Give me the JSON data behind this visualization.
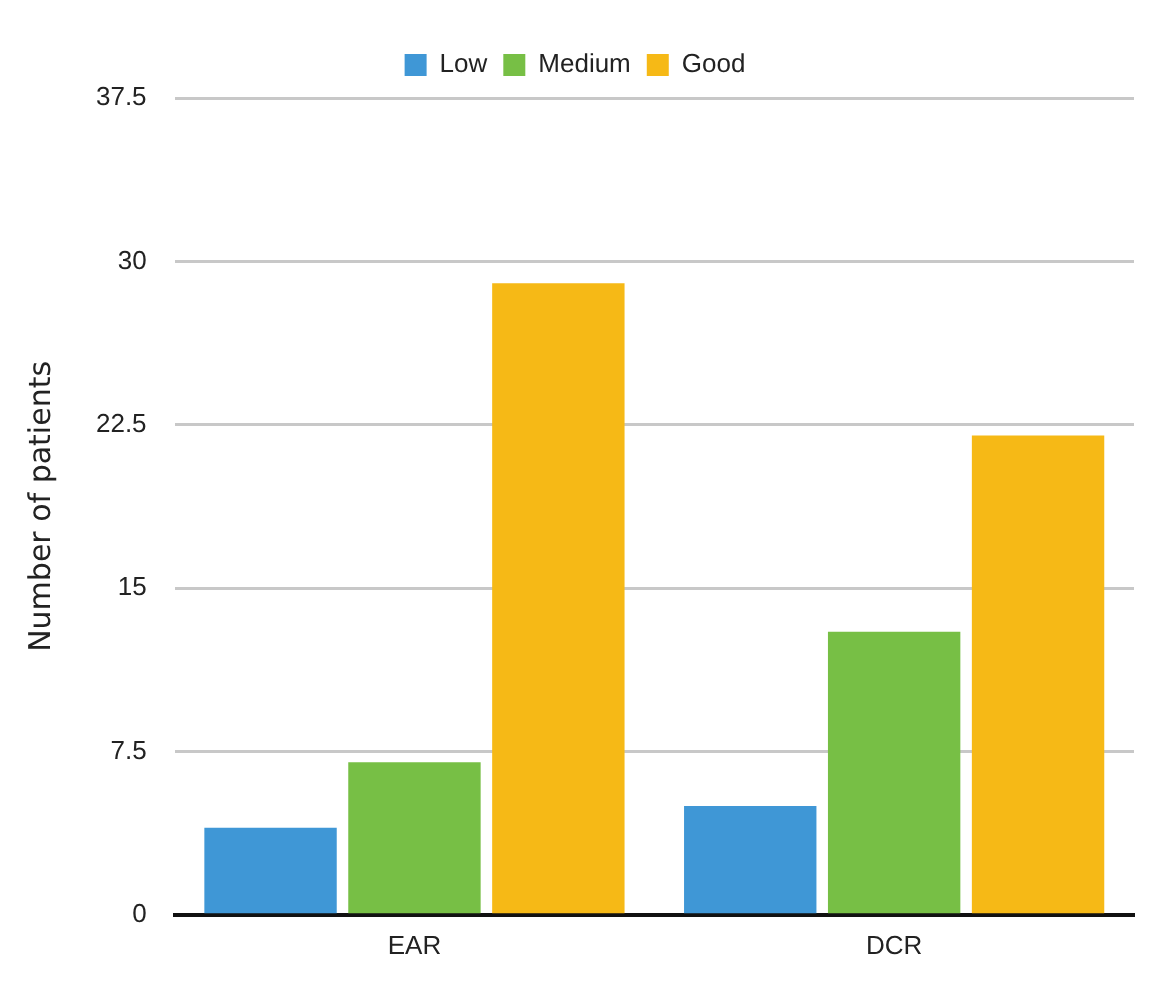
{
  "chart_data": {
    "type": "bar",
    "ylabel": "Number of patients",
    "categories": [
      "EAR",
      "DCR"
    ],
    "series": [
      {
        "name": "Low",
        "color": "#3f97d6",
        "values": [
          4,
          5
        ]
      },
      {
        "name": "Medium",
        "color": "#77bf45",
        "values": [
          7,
          13
        ]
      },
      {
        "name": "Good",
        "color": "#f6b916",
        "values": [
          29,
          22
        ]
      }
    ],
    "ylim": [
      0,
      37.5
    ],
    "yticks": [
      0,
      7.5,
      15,
      22.5,
      30,
      37.5
    ],
    "grid": "y",
    "legend": "top"
  }
}
